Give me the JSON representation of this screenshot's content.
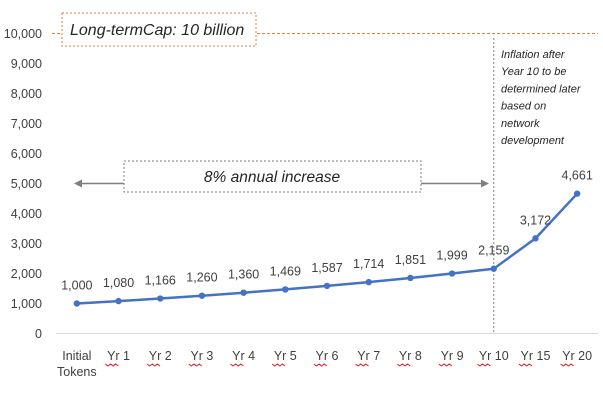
{
  "chart_data": {
    "type": "line",
    "categories": [
      "Initial Tokens",
      "Yr 1",
      "Yr 2",
      "Yr 3",
      "Yr 4",
      "Yr 5",
      "Yr 6",
      "Yr 7",
      "Yr 8",
      "Yr 9",
      "Yr 10",
      "Yr 15",
      "Yr 20"
    ],
    "category_lines": [
      [
        "Initial",
        "Tokens"
      ],
      [
        "Yr 1"
      ],
      [
        "Yr 2"
      ],
      [
        "Yr 3"
      ],
      [
        "Yr 4"
      ],
      [
        "Yr 5"
      ],
      [
        "Yr 6"
      ],
      [
        "Yr 7"
      ],
      [
        "Yr 8"
      ],
      [
        "Yr 9"
      ],
      [
        "Yr 10"
      ],
      [
        "Yr 15"
      ],
      [
        "Yr 20"
      ]
    ],
    "values": [
      1000,
      1080,
      1166,
      1260,
      1360,
      1469,
      1587,
      1714,
      1851,
      1999,
      2159,
      3172,
      4661
    ],
    "data_labels": [
      "1,000",
      "1,080",
      "1,166",
      "1,260",
      "1,360",
      "1,469",
      "1,587",
      "1,714",
      "1,851",
      "1,999",
      "2,159",
      "3,172",
      "4,661"
    ],
    "ylim": [
      0,
      10000
    ],
    "yticks": [
      0,
      1000,
      2000,
      3000,
      4000,
      5000,
      6000,
      7000,
      8000,
      9000,
      10000
    ],
    "ytick_labels": [
      "0",
      "1,000",
      "2,000",
      "3,000",
      "4,000",
      "5,000",
      "6,000",
      "7,000",
      "8,000",
      "9,000",
      "10,000"
    ],
    "series_color": "#4472c4",
    "cap_line": {
      "value": 10000,
      "label": "Long-termCap: 10 billion",
      "color": "#ed7d31"
    },
    "annotations": {
      "growth_label": "8% annual increase",
      "growth_arrow_value": 5000,
      "divider_after": "Yr 10",
      "inflation_note": [
        "Inflation after",
        "Year 10 to be",
        "determined  later",
        "based on",
        "network",
        "development"
      ]
    },
    "grid": false,
    "legend": "none"
  }
}
